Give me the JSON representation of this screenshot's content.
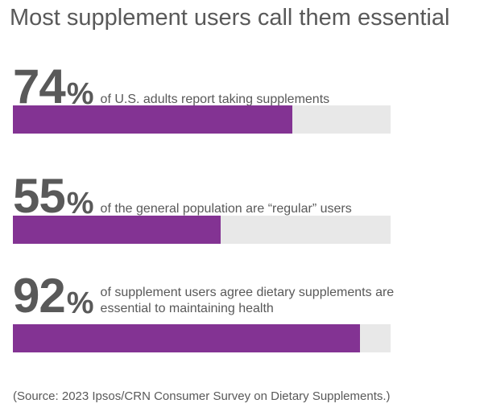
{
  "chart_data": {
    "type": "bar",
    "title": "Most supplement users call them essential",
    "unit": "%",
    "xlim": [
      0,
      100
    ],
    "colors": {
      "fill": "#833393",
      "track": "#e8e8e8",
      "text": "#595959"
    },
    "items": [
      {
        "value": 74,
        "label": "74",
        "description": "of U.S. adults report taking supplements"
      },
      {
        "value": 55,
        "label": "55",
        "description": "of the general population are “regular” users"
      },
      {
        "value": 92,
        "label": "92",
        "description": "of supplement users agree dietary supplements are essential to maintaining health"
      }
    ],
    "source": "(Source: 2023 Ipsos/CRN Consumer Survey on Dietary Supplements.)"
  }
}
